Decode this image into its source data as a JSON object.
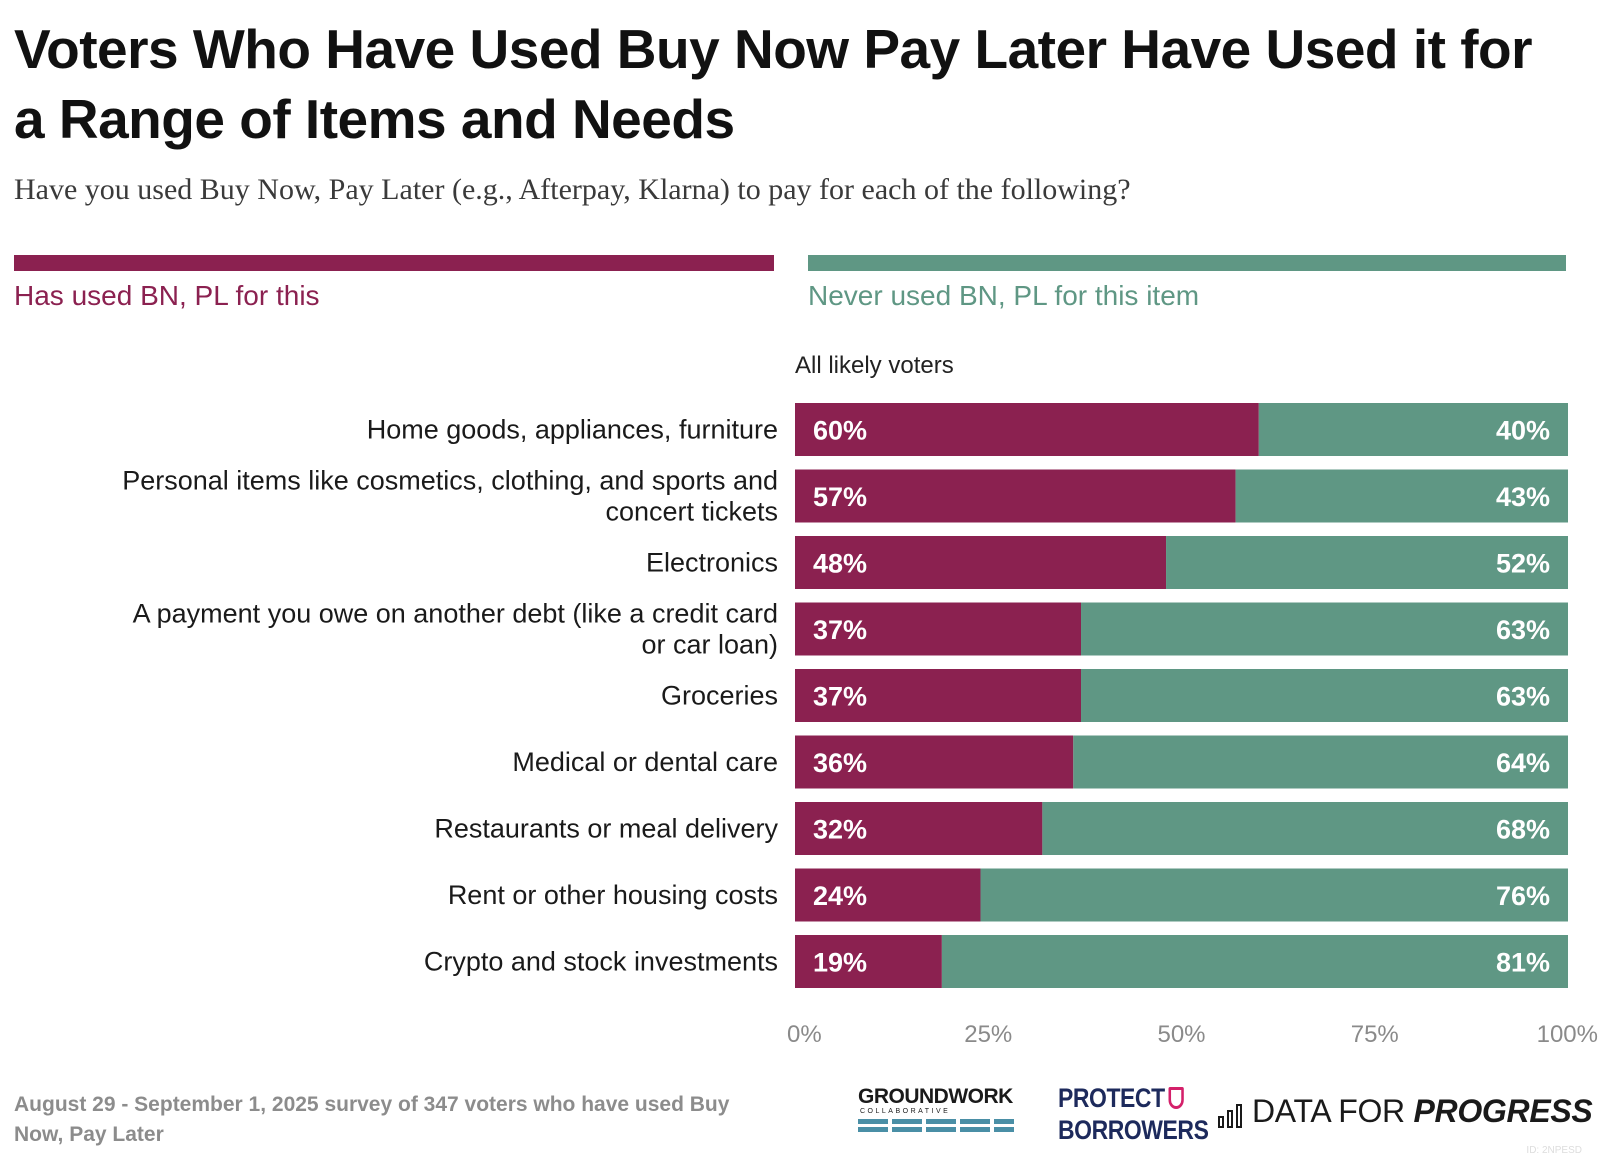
{
  "header": {
    "title": "Voters Who Have Used Buy Now Pay Later Have Used it for a Range of Items and Needs",
    "subtitle": "Have you used Buy Now, Pay Later (e.g., Afterpay, Klarna) to pay for each of the following?"
  },
  "legend": {
    "used": {
      "label": "Has used BN, PL for this",
      "color": "#8b2150"
    },
    "never": {
      "label": "Never used BN, PL for this item",
      "color": "#5f9784"
    }
  },
  "column_header": "All likely voters",
  "chart_data": {
    "type": "bar",
    "orientation": "horizontal",
    "stacked": true,
    "categories": [
      "Home goods, appliances, furniture",
      "Personal items like cosmetics, clothing, and sports and concert tickets",
      "Electronics",
      "A payment you owe on another debt (like a credit card or car loan)",
      "Groceries",
      "Medical or dental care",
      "Restaurants or meal delivery",
      "Rent or other housing costs",
      "Crypto and stock investments"
    ],
    "category_lines": [
      [
        "Home goods, appliances, furniture"
      ],
      [
        "Personal items like cosmetics, clothing, and sports and",
        "concert tickets"
      ],
      [
        "Electronics"
      ],
      [
        "A payment you owe on another debt (like a credit card",
        "or car loan)"
      ],
      [
        "Groceries"
      ],
      [
        "Medical or dental care"
      ],
      [
        "Restaurants or meal delivery"
      ],
      [
        "Rent or other housing costs"
      ],
      [
        "Crypto and stock investments"
      ]
    ],
    "series": [
      {
        "name": "Has used BN, PL for this",
        "values": [
          60,
          57,
          48,
          37,
          37,
          36,
          32,
          24,
          19
        ],
        "labels": [
          "60%",
          "57%",
          "48%",
          "37%",
          "37%",
          "36%",
          "32%",
          "24%",
          "19%"
        ],
        "color": "#8b2150"
      },
      {
        "name": "Never used BN, PL for this item",
        "values": [
          40,
          43,
          52,
          63,
          63,
          64,
          68,
          76,
          81
        ],
        "labels": [
          "40%",
          "43%",
          "52%",
          "63%",
          "63%",
          "64%",
          "68%",
          "76%",
          "81%"
        ],
        "color": "#5f9784"
      }
    ],
    "xlim": [
      0,
      100
    ],
    "xticks": [
      0,
      25,
      50,
      75,
      100
    ],
    "xtick_labels": [
      "0%",
      "25%",
      "50%",
      "75%",
      "100%"
    ],
    "grid": false,
    "legend_position": "top"
  },
  "footer": {
    "note": "August 29 - September 1, 2025 survey of 347 voters who have used Buy Now, Pay Later",
    "logos": {
      "groundwork": {
        "word": "GROUNDWORK",
        "sub": "COLLABORATIVE"
      },
      "protect_borrowers": {
        "line1": "PROTECT",
        "line2": "BORROWERS"
      },
      "data_for_progress": {
        "word_plain": "DATA FOR",
        "word_bold": "PROGRESS"
      }
    },
    "id_tag": "ID: 2NPESD"
  }
}
